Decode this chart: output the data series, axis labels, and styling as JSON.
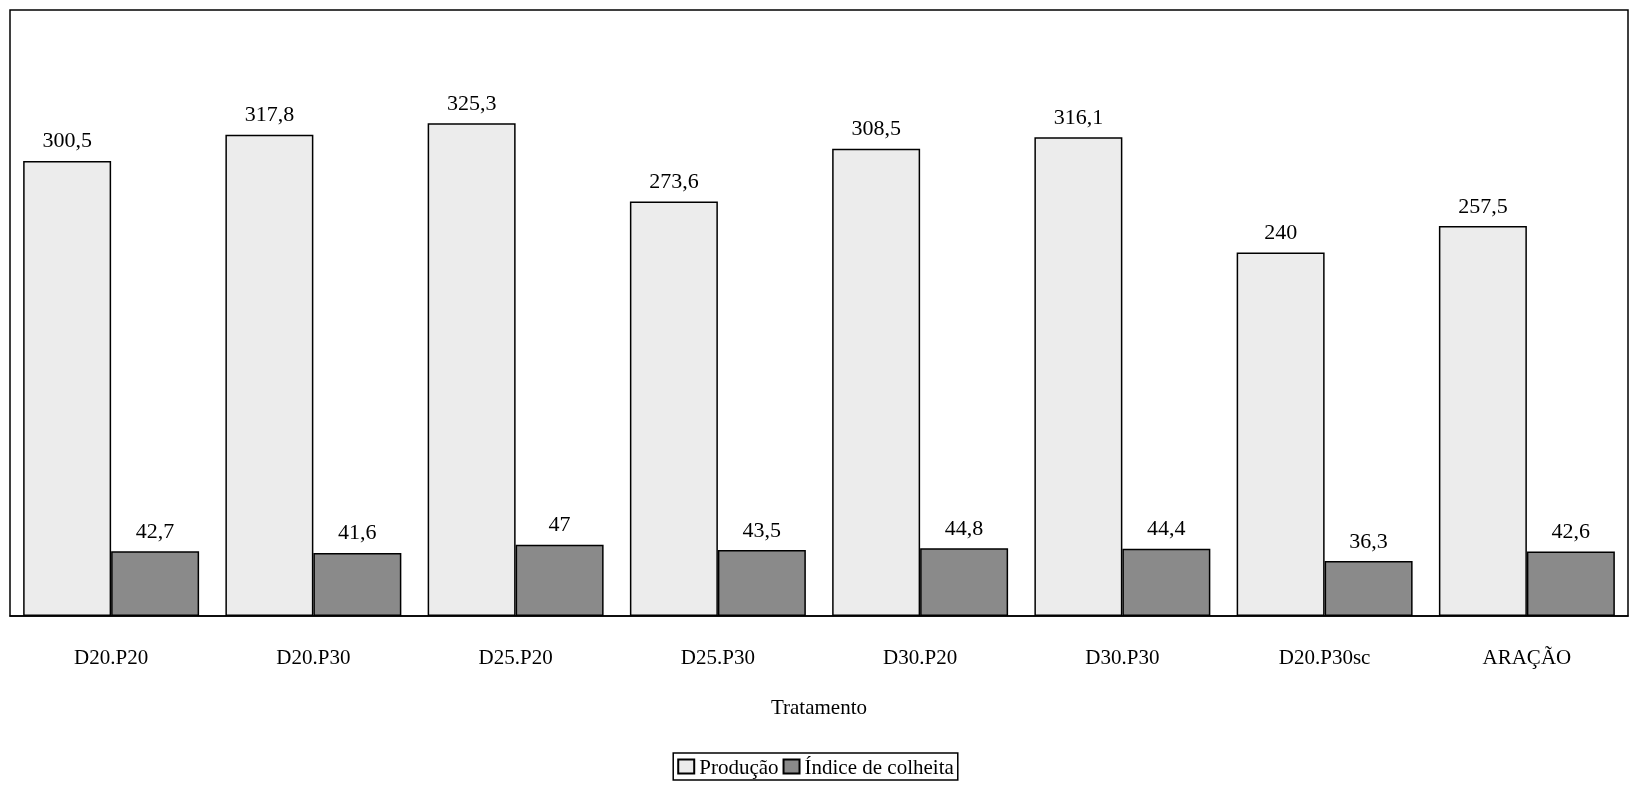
{
  "chart_data": {
    "type": "bar",
    "xlabel": "Tratamento",
    "categories": [
      "D20.P20",
      "D20.P30",
      "D25.P20",
      "D25.P30",
      "D30.P20",
      "D30.P30",
      "D20.P30sc",
      "ARAÇÃO"
    ],
    "series": [
      {
        "name": "Produção",
        "color": "#ececec",
        "values": [
          300.5,
          317.8,
          325.3,
          273.6,
          308.5,
          316.1,
          240,
          257.5
        ],
        "value_labels": [
          "300,5",
          "317,8",
          "325,3",
          "273,6",
          "308,5",
          "316,1",
          "240",
          "257,5"
        ]
      },
      {
        "name": "Índice de colheita",
        "color": "#8a8a8a",
        "values": [
          42.7,
          41.6,
          47,
          43.5,
          44.8,
          44.4,
          36.3,
          42.6
        ],
        "value_labels": [
          "42,7",
          "41,6",
          "47",
          "43,5",
          "44,8",
          "44,4",
          "36,3",
          "42,6"
        ]
      }
    ],
    "legend": "bottom",
    "grid": false,
    "tick_labels": "x"
  }
}
